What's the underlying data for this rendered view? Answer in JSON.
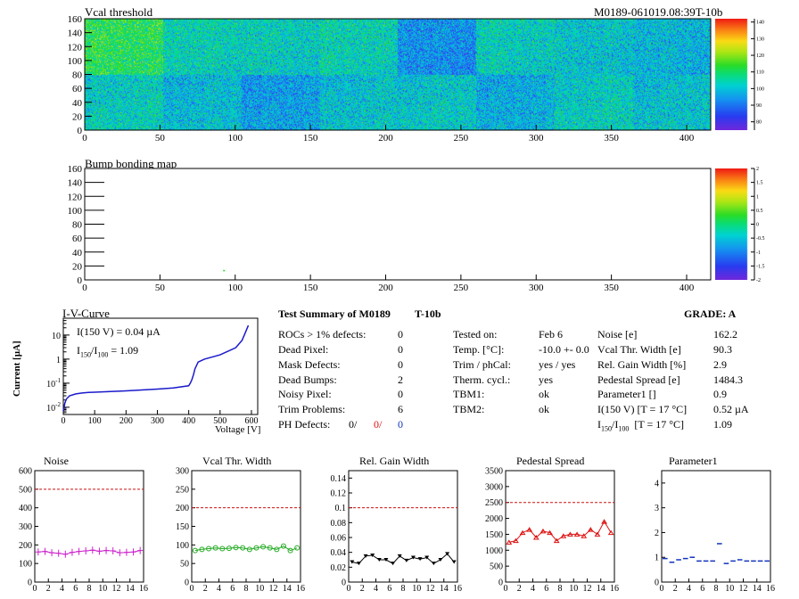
{
  "run_id": "M0189-061019.08:39T-10b",
  "vcal_map": {
    "title": "Vcal threshold",
    "x_ticks": [
      "0",
      "50",
      "100",
      "150",
      "200",
      "250",
      "300",
      "350",
      "400"
    ],
    "y_ticks": [
      "0",
      "20",
      "40",
      "60",
      "80",
      "100",
      "120",
      "140",
      "160"
    ],
    "palette_labels": [
      "140",
      "130",
      "120",
      "110",
      "100",
      "90",
      "80"
    ]
  },
  "bump_map": {
    "title": "Bump bonding map",
    "x_ticks": [
      "0",
      "50",
      "100",
      "150",
      "200",
      "250",
      "300",
      "350",
      "400"
    ],
    "y_ticks": [
      "0",
      "20",
      "40",
      "60",
      "80",
      "100",
      "120",
      "140",
      "160"
    ],
    "palette_labels": [
      "2",
      "1.5",
      "1",
      "0.5",
      "0",
      "-0.5",
      "-1",
      "-1.5",
      "-2"
    ]
  },
  "iv_curve": {
    "title": "I-V-Curve",
    "annotation_1": "I(150 V) = 0.04 µA",
    "annotation_2_main": "I",
    "annotation_2_sub1": "150",
    "annotation_2_slash": "/I",
    "annotation_2_sub2": "100",
    "annotation_2_value": "=  1.09",
    "ylabel": "Current [µA]",
    "xlabel": "Voltage [V]",
    "x_ticks": [
      "0",
      "100",
      "200",
      "300",
      "400",
      "500",
      "600"
    ],
    "y_tick_labels": [
      {
        "base": "10",
        "exp": "-2"
      },
      {
        "base": "10",
        "exp": "-1"
      },
      {
        "base": "1",
        "exp": ""
      },
      {
        "base": "10",
        "exp": ""
      }
    ]
  },
  "summary": {
    "title": "Test Summary of M0189",
    "temp_label": "T-10b",
    "grade_label": "GRADE:  A",
    "left_labels": [
      "ROCs > 1% defects:",
      "Dead Pixel:",
      "Mask Defects:",
      "Dead Bumps:",
      "Noisy Pixel:",
      "Trim Problems:",
      "PH Defects:"
    ],
    "left_values": [
      "0",
      "0",
      "0",
      "2",
      "0",
      "6"
    ],
    "ph_values": [
      "0/",
      "0/",
      "0"
    ],
    "mid_labels": [
      "Tested on:",
      "Temp. [°C]:",
      "Trim / phCal:",
      "Therm. cycl.:",
      "TBM1:",
      "TBM2:"
    ],
    "mid_values": [
      "Feb 6",
      "-10.0 +- 0.0",
      "yes / yes",
      "yes",
      "ok",
      "ok"
    ],
    "right_labels": [
      "Noise [e]",
      "Vcal Thr. Width [e]",
      "Rel. Gain Width [%]",
      "Pedestal Spread [e]",
      "Parameter1 []",
      "I(150 V) [T = 17 °C]"
    ],
    "right_values": [
      "162.2",
      "90.3",
      "2.9",
      "1484.3",
      "0.9",
      "0.52 µA"
    ],
    "ratio_label_main": "I",
    "ratio_sub1": "150",
    "ratio_slash": "/I",
    "ratio_sub2": "100",
    "ratio_rest": "  [T = 17 °C]",
    "ratio_value": "1.09"
  },
  "colors": {
    "noise": "#cc22cc",
    "vcal_width": "#22aa22",
    "rel_gain": "#000000",
    "pedestal": "#dd1111",
    "parameter1": "#1133bb",
    "iv": "#1a1acc",
    "limit": "#cc1111"
  },
  "chart_data": [
    {
      "type": "heatmap",
      "title": "Vcal threshold",
      "xlim": [
        0,
        416
      ],
      "ylim": [
        0,
        160
      ],
      "zlim": [
        75,
        142
      ],
      "description_of_blocks": "16 ROCs (8 x 2), each 52x80 pixels",
      "roc_means_top": [
        112,
        104,
        103,
        104,
        94,
        103,
        101,
        99
      ],
      "roc_means_bottom": [
        103,
        100,
        96,
        101,
        102,
        98,
        103,
        101
      ]
    },
    {
      "type": "heatmap",
      "title": "Bump bonding map",
      "xlim": [
        0,
        416
      ],
      "ylim": [
        0,
        160
      ],
      "zlim": [
        -2,
        2
      ],
      "points": [
        {
          "x": 92,
          "y": 13,
          "z": 0.3
        }
      ]
    },
    {
      "type": "line",
      "title": "I-V-Curve",
      "xlabel": "Voltage [V]",
      "ylabel": "Current [µA]",
      "xlim": [
        0,
        620
      ],
      "ylim": [
        0.005,
        50
      ],
      "log_y": true,
      "x": [
        0,
        5,
        10,
        20,
        40,
        60,
        80,
        100,
        150,
        200,
        250,
        300,
        350,
        400,
        405,
        410,
        415,
        420,
        430,
        450,
        500,
        550,
        570,
        580,
        590
      ],
      "y": [
        0.007,
        0.015,
        0.022,
        0.03,
        0.036,
        0.039,
        0.041,
        0.042,
        0.045,
        0.048,
        0.052,
        0.057,
        0.063,
        0.078,
        0.1,
        0.14,
        0.22,
        0.4,
        0.75,
        1.0,
        1.5,
        3.0,
        6.0,
        12.0,
        25.0
      ]
    },
    {
      "type": "line",
      "title": "Noise",
      "x": [
        0,
        1,
        2,
        3,
        4,
        5,
        6,
        7,
        8,
        9,
        10,
        11,
        12,
        13,
        14,
        15
      ],
      "y": [
        162,
        165,
        158,
        155,
        150,
        160,
        165,
        168,
        172,
        166,
        170,
        168,
        158,
        160,
        162,
        170
      ],
      "ylim": [
        0,
        600
      ],
      "limit": 500,
      "x_ticks": [
        "0",
        "2",
        "4",
        "6",
        "8",
        "10",
        "12",
        "14",
        "16"
      ],
      "y_ticks": [
        "0",
        "100",
        "200",
        "300",
        "400",
        "500",
        "600"
      ]
    },
    {
      "type": "line",
      "title": "Vcal Thr. Width",
      "x": [
        0,
        1,
        2,
        3,
        4,
        5,
        6,
        7,
        8,
        9,
        10,
        11,
        12,
        13,
        14,
        15
      ],
      "y": [
        85,
        88,
        90,
        92,
        90,
        91,
        93,
        92,
        88,
        92,
        95,
        92,
        88,
        97,
        85,
        92
      ],
      "ylim": [
        0,
        300
      ],
      "limit": 200,
      "x_ticks": [
        "0",
        "2",
        "4",
        "6",
        "8",
        "10",
        "12",
        "14",
        "16"
      ],
      "y_ticks": [
        "0",
        "50",
        "100",
        "150",
        "200",
        "250",
        "300"
      ]
    },
    {
      "type": "line",
      "title": "Rel. Gain Width",
      "x": [
        0,
        1,
        2,
        3,
        4,
        5,
        6,
        7,
        8,
        9,
        10,
        11,
        12,
        13,
        14,
        15
      ],
      "y": [
        0.027,
        0.025,
        0.035,
        0.036,
        0.03,
        0.03,
        0.025,
        0.035,
        0.029,
        0.033,
        0.031,
        0.033,
        0.025,
        0.03,
        0.038,
        0.027
      ],
      "ylim": [
        0,
        0.15
      ],
      "limit": 0.1,
      "x_ticks": [
        "0",
        "2",
        "4",
        "6",
        "8",
        "10",
        "12",
        "14",
        "16"
      ],
      "y_ticks": [
        "0",
        "0.02",
        "0.04",
        "0.06",
        "0.08",
        "0.1",
        "0.12",
        "0.14"
      ]
    },
    {
      "type": "line",
      "title": "Pedestal Spread",
      "x": [
        0,
        1,
        2,
        3,
        4,
        5,
        6,
        7,
        8,
        9,
        10,
        11,
        12,
        13,
        14,
        15
      ],
      "y": [
        1250,
        1300,
        1550,
        1650,
        1400,
        1600,
        1550,
        1300,
        1450,
        1500,
        1500,
        1450,
        1650,
        1500,
        1900,
        1550
      ],
      "ylim": [
        0,
        3500
      ],
      "limit": 2500,
      "x_ticks": [
        "0",
        "2",
        "4",
        "6",
        "8",
        "10",
        "12",
        "14",
        "16"
      ],
      "y_ticks": [
        "0",
        "500",
        "1000",
        "1500",
        "2000",
        "2500",
        "3000",
        "3500"
      ]
    },
    {
      "type": "scatter",
      "title": "Parameter1",
      "x": [
        0,
        1,
        2,
        3,
        4,
        5,
        6,
        7,
        8,
        9,
        10,
        11,
        12,
        13,
        14,
        15
      ],
      "y": [
        0.95,
        0.8,
        0.9,
        0.95,
        1.0,
        0.85,
        0.85,
        0.85,
        1.55,
        0.75,
        0.85,
        0.9,
        0.85,
        0.85,
        0.85,
        0.85
      ],
      "ylim": [
        0,
        4.5
      ],
      "x_ticks": [
        "0",
        "2",
        "4",
        "6",
        "8",
        "10",
        "12",
        "14",
        "16"
      ],
      "y_ticks": [
        "0",
        "1",
        "2",
        "3",
        "4"
      ]
    }
  ]
}
